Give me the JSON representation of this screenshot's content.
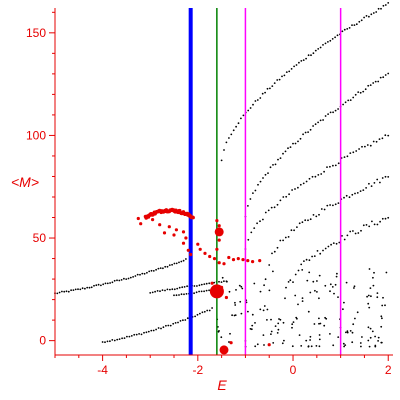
{
  "chart_data": {
    "type": "scatter",
    "title": "",
    "xlabel": "E",
    "ylabel": "<M>",
    "xlim": [
      -5,
      2.1
    ],
    "ylim": [
      -7,
      166
    ],
    "xticks": [
      -4,
      -2,
      0,
      2
    ],
    "yticks": [
      0,
      50,
      100,
      150
    ],
    "axis_color": "#e60000",
    "grid": false,
    "vertical_lines": [
      {
        "x": -2.15,
        "color": "#0000ff",
        "width": "thick"
      },
      {
        "x": -1.6,
        "color": "#008000",
        "width": "normal"
      },
      {
        "x": -1.0,
        "color": "#ff00ff",
        "width": "normal"
      },
      {
        "x": 1.0,
        "color": "#ff00ff",
        "width": "normal"
      }
    ],
    "series": [
      {
        "role": "black-band-1",
        "color": "#000000",
        "x_start": -5.0,
        "x_end": -2.25,
        "n": 58,
        "poly": [
          63.0,
          12.5,
          0.9
        ],
        "jitter": 0.4
      },
      {
        "role": "black-band-2",
        "color": "#000000",
        "x_start": -4.0,
        "x_end": -1.7,
        "n": 46,
        "poly": [
          37,
          15.0,
          1.4
        ],
        "jitter": 0.4
      },
      {
        "role": "black-band-3",
        "color": "#000000",
        "x_start": -3.0,
        "x_end": -1.4,
        "n": 32,
        "poly": [
          34,
          3.5,
          0
        ],
        "jitter": 0.3
      },
      {
        "role": "black-band-4",
        "color": "#000000",
        "x_start": -2.5,
        "x_end": -1.5,
        "n": 20,
        "poly": [
          30,
          3.2,
          0
        ],
        "jitter": 0.3
      },
      {
        "role": "black-upper-1",
        "color": "#000000",
        "x_start": -1.5,
        "x_end": 2.0,
        "n": 70,
        "poly": [
          0,
          0,
          0
        ],
        "jitter": 0.6,
        "curve": {
          "y_at_start": 88,
          "y_at_end": 164
        }
      },
      {
        "role": "black-upper-2",
        "color": "#000000",
        "x_start": -1.0,
        "x_end": 2.0,
        "n": 58,
        "poly": [
          0,
          0,
          0
        ],
        "jitter": 0.8,
        "curve": {
          "y_at_start": 60,
          "y_at_end": 130
        }
      },
      {
        "role": "black-upper-3",
        "color": "#000000",
        "x_start": -1.0,
        "x_end": 2.0,
        "n": 50,
        "poly": [
          0,
          0,
          0
        ],
        "jitter": 1.0,
        "curve": {
          "y_at_start": 45,
          "y_at_end": 100
        }
      },
      {
        "role": "black-upper-4",
        "color": "#000000",
        "x_start": -0.5,
        "x_end": 2.0,
        "n": 44,
        "poly": [
          0,
          0,
          0
        ],
        "jitter": 1.2,
        "curve": {
          "y_at_start": 38,
          "y_at_end": 80
        }
      },
      {
        "role": "black-upper-5",
        "color": "#000000",
        "x_start": 0.0,
        "x_end": 2.0,
        "n": 36,
        "poly": [
          0,
          0,
          0
        ],
        "jitter": 1.5,
        "curve": {
          "y_at_start": 30,
          "y_at_end": 60
        }
      },
      {
        "role": "black-cloud",
        "color": "#000000",
        "cloud": {
          "x": [
            -1.6,
            2.0
          ],
          "y": [
            -3,
            35
          ],
          "n": 170
        }
      }
    ],
    "red_arc": {
      "color": "#e60000",
      "x_start": -3.1,
      "x_end": -2.1,
      "n": 65,
      "peak_x": -2.6,
      "peak_y": 63.5,
      "drop": 3.5
    },
    "red_points": [
      {
        "x": -3.25,
        "y": 59.5
      },
      {
        "x": -3.2,
        "y": 57.0
      },
      {
        "x": -2.95,
        "y": 59.0
      },
      {
        "x": -2.8,
        "y": 56.5
      },
      {
        "x": -2.6,
        "y": 55.5
      },
      {
        "x": -2.45,
        "y": 54.0
      },
      {
        "x": -2.3,
        "y": 53.0
      },
      {
        "x": -2.25,
        "y": 50.0
      },
      {
        "x": -2.3,
        "y": 47.5
      },
      {
        "x": -2.2,
        "y": 44.0
      },
      {
        "x": -2.15,
        "y": 42.0
      },
      {
        "x": -2.0,
        "y": 47.0
      },
      {
        "x": -1.95,
        "y": 44.5
      },
      {
        "x": -1.85,
        "y": 42.5
      },
      {
        "x": -1.75,
        "y": 41.0
      },
      {
        "x": -1.65,
        "y": 40.0
      },
      {
        "x": -1.55,
        "y": 38.0
      },
      {
        "x": -1.45,
        "y": 37.5
      },
      {
        "x": -1.35,
        "y": 40.5
      },
      {
        "x": -1.25,
        "y": 39.5
      },
      {
        "x": -1.15,
        "y": 40.0
      },
      {
        "x": -1.05,
        "y": 39.5
      },
      {
        "x": -0.95,
        "y": 39.0
      },
      {
        "x": -0.85,
        "y": 38.5
      },
      {
        "x": -0.7,
        "y": 39.0
      },
      {
        "x": -1.55,
        "y": 56.0
      },
      {
        "x": -1.6,
        "y": 58.5
      },
      {
        "x": -1.55,
        "y": 49.0
      },
      {
        "x": -1.6,
        "y": 44.5
      },
      {
        "x": -1.5,
        "y": 26.0
      },
      {
        "x": -1.7,
        "y": 28.0
      },
      {
        "x": -1.4,
        "y": 21.0
      },
      {
        "x": -1.3,
        "y": -1.0
      },
      {
        "x": -0.5,
        "y": -2.0
      },
      {
        "x": -2.5,
        "y": 51.5
      },
      {
        "x": -2.7,
        "y": 52.5
      }
    ],
    "red_big_points": [
      {
        "x": -1.6,
        "y": 24.0,
        "size": "large"
      },
      {
        "x": -1.55,
        "y": 53.0,
        "size": "medium"
      },
      {
        "x": -1.45,
        "y": -4.5,
        "size": "medium"
      }
    ]
  }
}
